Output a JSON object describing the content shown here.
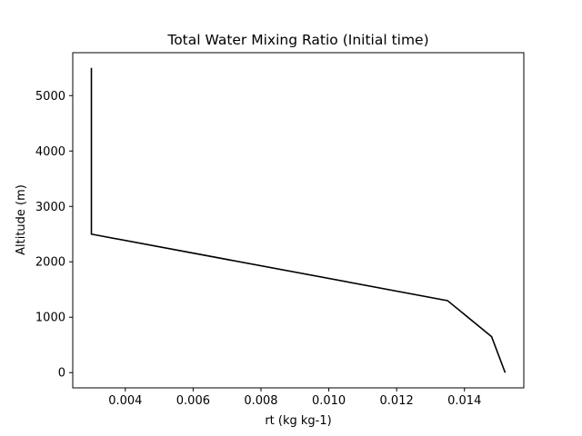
{
  "chart_data": {
    "type": "line",
    "title": "Total Water Mixing Ratio (Initial time)",
    "xlabel": "rt (kg kg-1)",
    "ylabel": "Altitude (m)",
    "xlim": [
      0.00245,
      0.01575
    ],
    "ylim": [
      -275,
      5775
    ],
    "xticks": [
      0.004,
      0.006,
      0.008,
      0.01,
      0.012,
      0.014
    ],
    "xtick_labels": [
      "0.004",
      "0.006",
      "0.008",
      "0.010",
      "0.012",
      "0.014"
    ],
    "yticks": [
      0,
      1000,
      2000,
      3000,
      4000,
      5000
    ],
    "ytick_labels": [
      "0",
      "1000",
      "2000",
      "3000",
      "4000",
      "5000"
    ],
    "grid": false,
    "series": [
      {
        "color": "#000000",
        "x": [
          0.0152,
          0.0148,
          0.0135,
          0.003,
          0.003
        ],
        "y": [
          0,
          650,
          1300,
          2500,
          5500
        ]
      }
    ]
  }
}
